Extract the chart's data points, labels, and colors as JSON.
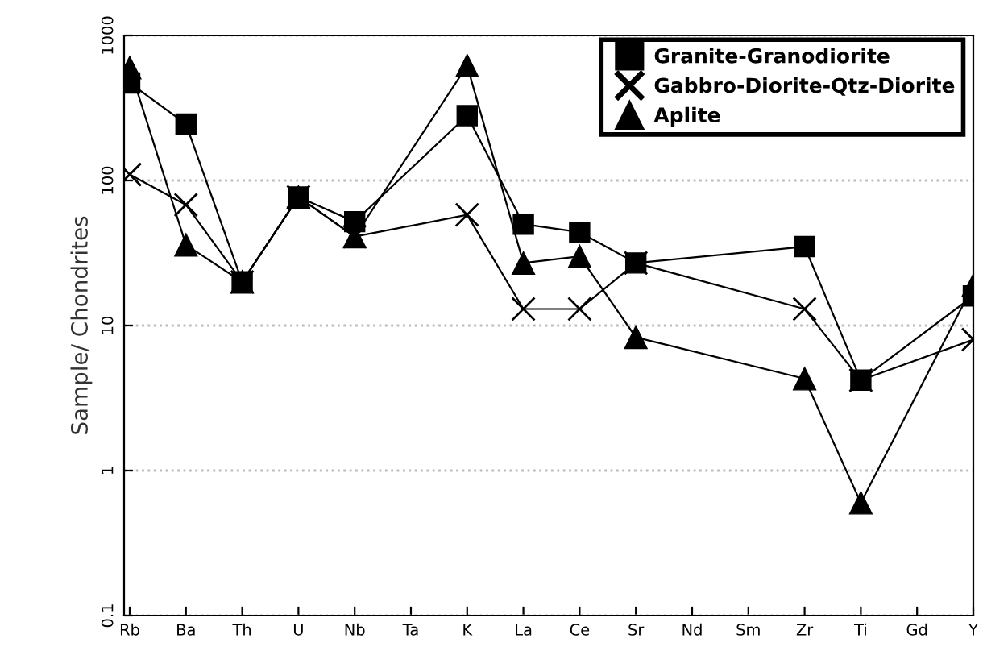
{
  "chart_data": {
    "type": "line",
    "ylabel": "Sample/ Chondrites",
    "categories": [
      "Rb",
      "Ba",
      "Th",
      "U",
      "Nb",
      "Ta",
      "K",
      "La",
      "Ce",
      "Sr",
      "Nd",
      "Sm",
      "Zr",
      "Ti",
      "Gd",
      "Y"
    ],
    "series": [
      {
        "name": "Granite-Granodiorite",
        "color": "#000000",
        "marker": "square",
        "values": [
          470,
          245,
          20,
          77,
          52,
          null,
          280,
          50,
          44,
          27,
          null,
          null,
          35,
          4.2,
          null,
          16
        ]
      },
      {
        "name": "Gabbro-Diorite-Qtz-Diorite",
        "color": "#000000",
        "marker": "cross",
        "values": [
          110,
          68,
          20,
          77,
          41,
          null,
          58,
          13,
          13,
          27,
          null,
          null,
          13,
          4.2,
          null,
          8
        ]
      },
      {
        "name": "Aplite",
        "color": "#000000",
        "marker": "triangle",
        "values": [
          600,
          36,
          20,
          77,
          41,
          null,
          620,
          27,
          30,
          8.3,
          null,
          null,
          4.3,
          0.6,
          null,
          19
        ]
      }
    ],
    "log": true,
    "ylim": [
      0.1,
      1000
    ],
    "yticks": [
      0.1,
      1,
      10,
      100,
      1000
    ],
    "grid": "y",
    "legend": "top right"
  }
}
